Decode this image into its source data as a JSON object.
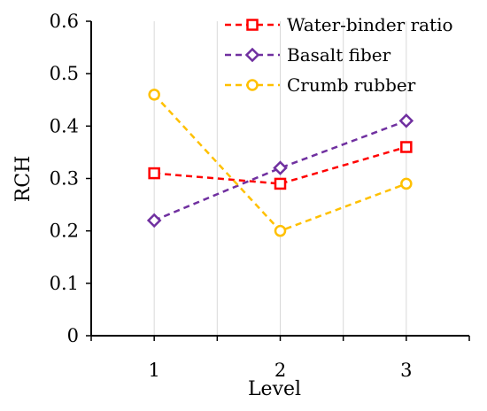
{
  "chart_data": {
    "type": "line",
    "title": "",
    "xlabel": "Level",
    "ylabel": "RCH",
    "x": [
      1,
      2,
      3
    ],
    "x_tick_labels": [
      "1",
      "2",
      "3"
    ],
    "ylim": [
      0,
      0.6
    ],
    "y_ticks": [
      0,
      0.1,
      0.2,
      0.3,
      0.4,
      0.5,
      0.6
    ],
    "y_tick_labels": [
      "0",
      "0.1",
      "0.2",
      "0.3",
      "0.4",
      "0.5",
      "0.6"
    ],
    "grid": {
      "vertical": true,
      "horizontal": false
    },
    "legend_position": "top-right",
    "series": [
      {
        "name": "Water-binder ratio",
        "values": [
          0.31,
          0.29,
          0.36
        ],
        "color": "#ff0000",
        "marker": "square",
        "dash": "dashed"
      },
      {
        "name": "Basalt fiber",
        "values": [
          0.22,
          0.32,
          0.41
        ],
        "color": "#7030a0",
        "marker": "diamond",
        "dash": "dashed"
      },
      {
        "name": "Crumb rubber",
        "values": [
          0.46,
          0.2,
          0.29
        ],
        "color": "#ffc000",
        "marker": "circle",
        "dash": "dashed"
      }
    ]
  }
}
